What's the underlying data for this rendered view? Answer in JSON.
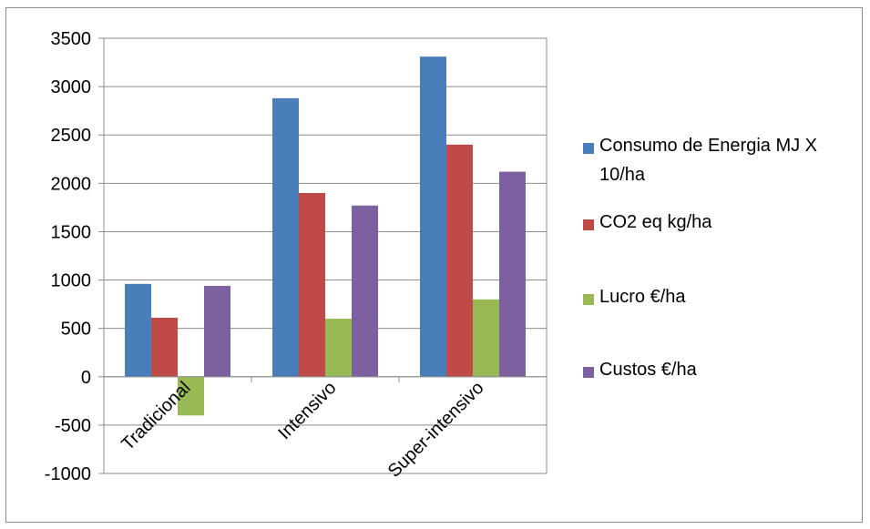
{
  "chart_data": {
    "type": "bar",
    "categories": [
      "Tradicional",
      "Intensivo",
      "Super-intensivo"
    ],
    "series": [
      {
        "name": "Consumo de Energia MJ X 10/ha",
        "color": "#4a7ebb",
        "values": [
          960,
          2880,
          3310
        ]
      },
      {
        "name": "CO2 eq kg/ha",
        "color": "#be4b48",
        "values": [
          610,
          1900,
          2400
        ]
      },
      {
        "name": "Lucro €/ha",
        "color": "#98b954",
        "values": [
          -400,
          600,
          800
        ]
      },
      {
        "name": "Custos €/ha",
        "color": "#7d60a0",
        "values": [
          940,
          1770,
          2120
        ]
      }
    ],
    "ylim": [
      -1000,
      3500
    ],
    "yticks": [
      3500,
      3000,
      2500,
      2000,
      1500,
      1000,
      500,
      0,
      -500,
      -1000
    ],
    "grid": true,
    "legend_position": "right"
  }
}
